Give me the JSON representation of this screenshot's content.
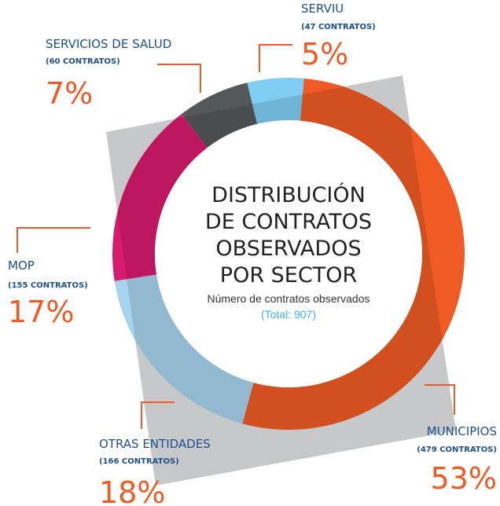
{
  "chart_data": {
    "type": "donut",
    "title": "DISTRIBUCIÓN DE CONTRATOS OBSERVADOS POR SECTOR",
    "subtitle": "Número de contratos observados",
    "total_label": "(Total: 907)",
    "categories": [
      "SERVIU",
      "MUNICIPIOS",
      "OTRAS ENTIDADES",
      "MOP",
      "SERVICIOS DE SALUD"
    ],
    "values": [
      47,
      479,
      166,
      155,
      60
    ],
    "value_labels": [
      "(47 CONTRATOS)",
      "(479 CONTRATOS)",
      "(166 CONTRATOS)",
      "(155 CONTRATOS)",
      "(60 CONTRATOS)"
    ],
    "percent": [
      5,
      53,
      18,
      17,
      7
    ],
    "percent_labels": [
      "5%",
      "53%",
      "18%",
      "17%",
      "7%"
    ],
    "colors": [
      "#7fcdf2",
      "#f05a24",
      "#a7d3ec",
      "#d81b6e",
      "#555759"
    ]
  }
}
